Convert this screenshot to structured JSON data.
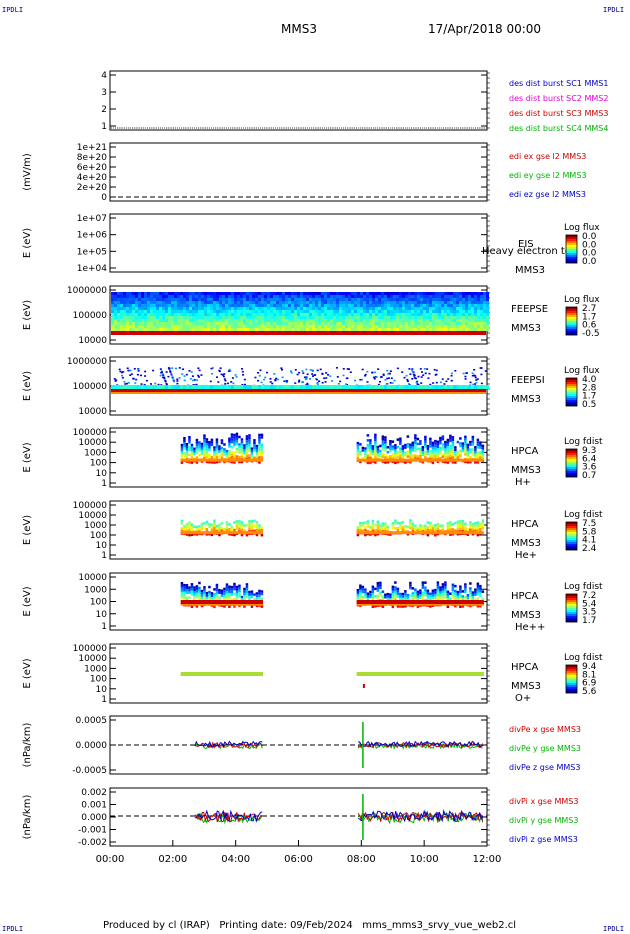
{
  "corner_marks": {
    "top_left": "IPDLI",
    "top_right": "IPDLI",
    "bottom_left": "IPDLI",
    "bottom_right": "IPDLI"
  },
  "header": {
    "spacecraft": "MMS3",
    "date": "17/Apr/2018 00:00"
  },
  "footer": {
    "text": "Produced by cl (IRAP)   Printing date: 09/Feb/2024   mms_mms3_srvy_vue_web2.cl"
  },
  "colors": {
    "red": "#cc0000",
    "green": "#00b400",
    "blue": "#0000c8",
    "magenta": "#e000e0",
    "orange": "#ff8c00",
    "cyan": "#00c8c8"
  },
  "chart_data": [
    {
      "type": "table",
      "id": "p1",
      "ylim": [
        0.5,
        4.5
      ],
      "ytick_labels": [
        "4",
        "3",
        "2",
        "1"
      ],
      "legend": [
        {
          "text": "des dist burst SC1 MMS1",
          "color": "#0000c8"
        },
        {
          "text": "des dist burst SC2 MMS2",
          "color": "#e000e0"
        },
        {
          "text": "des dist burst SC3 MMS3",
          "color": "#cc0000"
        },
        {
          "text": "des dist burst SC4 MMS4",
          "color": "#00b400"
        }
      ]
    },
    {
      "type": "line",
      "id": "p2",
      "ylabel": "(mV/m)",
      "ylim": [
        0,
        1.1e+21
      ],
      "ytick_labels": [
        "1e+21",
        "8e+20",
        "6e+20",
        "4e+20",
        "2e+20",
        "0"
      ],
      "legend": [
        {
          "text": "edi ex gse l2 MMS3",
          "color": "#cc0000"
        },
        {
          "text": "edi ey gse l2 MMS3",
          "color": "#00b400"
        },
        {
          "text": "edi ez gse l2 MMS3",
          "color": "#0000c8"
        }
      ]
    },
    {
      "type": "heatmap",
      "id": "p3",
      "ylabel": "E (eV)",
      "ytick_labels": [
        "1e+07",
        "1e+06",
        "1e+05",
        "1e+04"
      ],
      "right_labels": [
        "EIS",
        "Heavy electron tof",
        "MMS3"
      ],
      "cbar_title": "Log flux",
      "cbar_ticks": [
        "0.0",
        "0.0",
        "0.0",
        "0.0"
      ]
    },
    {
      "type": "heatmap",
      "id": "p4",
      "ylabel": "E (eV)",
      "ytick_labels": [
        "1000000",
        "100000",
        "10000"
      ],
      "right_labels": [
        "FEEPSE",
        "MMS3"
      ],
      "cbar_title": "Log flux",
      "cbar_ticks": [
        "2.7",
        "1.7",
        "0.6",
        "-0.5"
      ]
    },
    {
      "type": "heatmap",
      "id": "p5",
      "ylabel": "E (eV)",
      "ytick_labels": [
        "1000000",
        "100000",
        "10000"
      ],
      "right_labels": [
        "FEEPSI",
        "MMS3"
      ],
      "cbar_title": "Log flux",
      "cbar_ticks": [
        "4.0",
        "2.8",
        "1.7",
        "0.5"
      ]
    },
    {
      "type": "heatmap",
      "id": "p6",
      "ylabel": "E (eV)",
      "ytick_labels": [
        "100000",
        "10000",
        "1000",
        "100",
        "10",
        "1"
      ],
      "right_labels": [
        "HPCA",
        "MMS3",
        "H+"
      ],
      "cbar_title": "Log fdist",
      "cbar_ticks": [
        "9.3",
        "6.4",
        "3.6",
        "0.7"
      ]
    },
    {
      "type": "heatmap",
      "id": "p7",
      "ylabel": "E (eV)",
      "ytick_labels": [
        "100000",
        "10000",
        "1000",
        "100",
        "10",
        "1"
      ],
      "right_labels": [
        "HPCA",
        "MMS3",
        "He+"
      ],
      "cbar_title": "Log fdist",
      "cbar_ticks": [
        "7.5",
        "5.8",
        "4.1",
        "2.4"
      ]
    },
    {
      "type": "heatmap",
      "id": "p8",
      "ylabel": "E (eV)",
      "ytick_labels": [
        "10000",
        "1000",
        "100",
        "10",
        "1"
      ],
      "right_labels": [
        "HPCA",
        "MMS3",
        "He++"
      ],
      "cbar_title": "Log fdist",
      "cbar_ticks": [
        "7.2",
        "5.4",
        "3.5",
        "1.7"
      ]
    },
    {
      "type": "heatmap",
      "id": "p9",
      "ylabel": "E (eV)",
      "ytick_labels": [
        "100000",
        "10000",
        "1000",
        "100",
        "10",
        "1"
      ],
      "right_labels": [
        "HPCA",
        "MMS3",
        "O+"
      ],
      "cbar_title": "Log fdist",
      "cbar_ticks": [
        "9.4",
        "8.1",
        "6.9",
        "5.6"
      ]
    },
    {
      "type": "line",
      "id": "p10",
      "ylabel": "(nPa/km)",
      "ylim": [
        -0.0009,
        0.0009
      ],
      "ytick_labels": [
        "0.0005",
        "0.0000",
        "-0.0005"
      ],
      "legend": [
        {
          "text": "divPe x gse MMS3",
          "color": "#cc0000"
        },
        {
          "text": "divPe y gse MMS3",
          "color": "#00b400"
        },
        {
          "text": "divPe z gse MMS3",
          "color": "#0000c8"
        }
      ]
    },
    {
      "type": "line",
      "id": "p11",
      "ylabel": "(nPa/km)",
      "ylim": [
        -0.0028,
        0.0022
      ],
      "ytick_labels": [
        "0.002",
        "0.001",
        "0.000",
        "-0.001",
        "-0.002"
      ],
      "legend": [
        {
          "text": "divPi x gse MMS3",
          "color": "#cc0000"
        },
        {
          "text": "divPi y gse MMS3",
          "color": "#00b400"
        },
        {
          "text": "divPi z gse MMS3",
          "color": "#0000c8"
        }
      ]
    }
  ],
  "x_axis": {
    "tick_labels": [
      "00:00",
      "02:00",
      "04:00",
      "06:00",
      "08:00",
      "10:00",
      "12:00"
    ],
    "range_hours": [
      0,
      12
    ]
  },
  "intervals_hours": [
    [
      2.7,
      4.87
    ],
    [
      7.85,
      11.9
    ]
  ]
}
